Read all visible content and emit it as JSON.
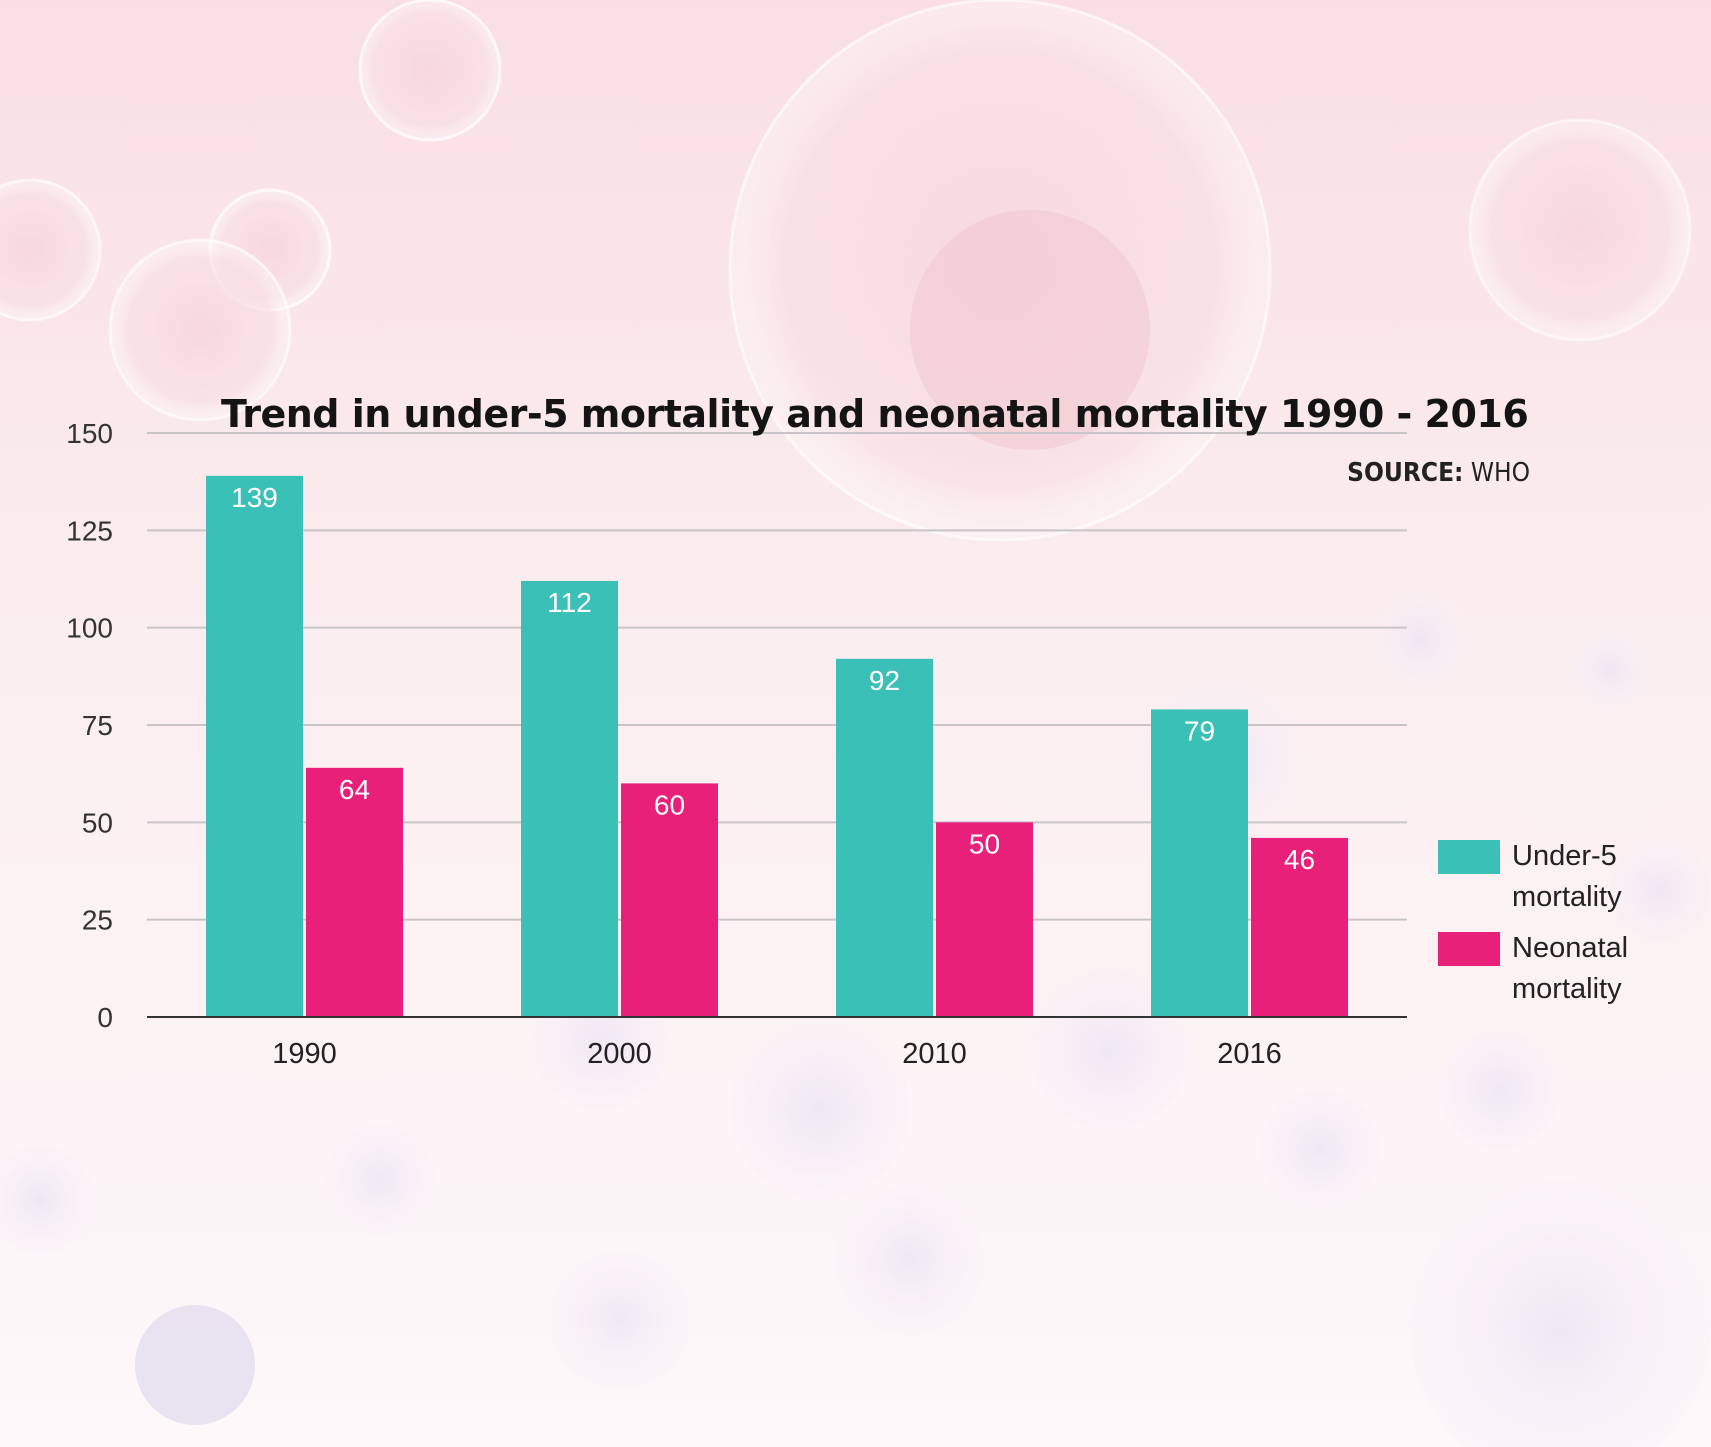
{
  "chart_data": {
    "type": "bar",
    "title": "Trend in under-5 mortality and neonatal mortality 1990 - 2016",
    "source_label": "SOURCE:",
    "source_value": "WHO",
    "categories": [
      "1990",
      "2000",
      "2010",
      "2016"
    ],
    "series": [
      {
        "name": "Under-5 mortality",
        "values": [
          139,
          112,
          92,
          79
        ],
        "color": "#3bc0b8"
      },
      {
        "name": "Neonatal mortality",
        "values": [
          64,
          60,
          50,
          46
        ],
        "color": "#e8207a"
      }
    ],
    "ylim": [
      0,
      150
    ],
    "yticks": [
      "0",
      "25",
      "50",
      "75",
      "100",
      "125",
      "150"
    ],
    "xlabel": "",
    "ylabel": "",
    "grid": true,
    "legend_position": "right"
  }
}
